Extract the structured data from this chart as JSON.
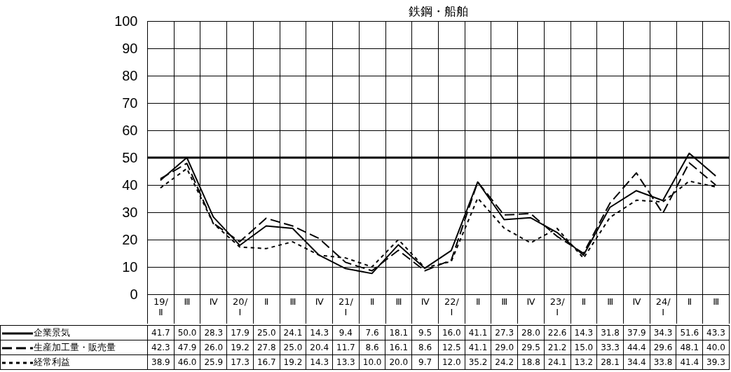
{
  "chart_data": {
    "type": "line",
    "title": "鉄鋼・船舶",
    "categories": [
      "19/\nⅡ",
      "Ⅲ",
      "Ⅳ",
      "20/\nⅠ",
      "Ⅱ",
      "Ⅲ",
      "Ⅳ",
      "21/\nⅠ",
      "Ⅱ",
      "Ⅲ",
      "Ⅳ",
      "22/\nⅠ",
      "Ⅱ",
      "Ⅲ",
      "Ⅳ",
      "23/\nⅠ",
      "Ⅱ",
      "Ⅲ",
      "Ⅳ",
      "24/\nⅠ",
      "Ⅱ",
      "Ⅲ"
    ],
    "series": [
      {
        "name": "企業景気",
        "color": "#000000",
        "line_style": "solid",
        "values": [
          41.7,
          50.0,
          28.3,
          17.9,
          25.0,
          24.1,
          14.3,
          9.4,
          7.6,
          18.1,
          9.5,
          16.0,
          41.1,
          27.3,
          28.0,
          22.6,
          14.3,
          31.8,
          37.9,
          34.3,
          51.6,
          43.3
        ],
        "value_labels": [
          "41.7",
          "50.0",
          "28.3",
          "17.9",
          "25.0",
          "24.1",
          "14.3",
          "9.4",
          "7.6",
          "18.1",
          "9.5",
          "16.0",
          "41.1",
          "27.3",
          "28.0",
          "22.6",
          "14.3",
          "31.8",
          "37.9",
          "34.3",
          "51.6",
          "43.3"
        ]
      },
      {
        "name": "生産加工量・販売量",
        "color": "#000000",
        "line_style": "dashed",
        "values": [
          42.3,
          47.9,
          26.0,
          19.2,
          27.8,
          25.0,
          20.4,
          11.7,
          8.6,
          16.1,
          8.6,
          12.5,
          41.1,
          29.0,
          29.5,
          21.2,
          15.0,
          33.3,
          44.4,
          29.6,
          48.1,
          40.0
        ],
        "value_labels": [
          "42.3",
          "47.9",
          "26.0",
          "19.2",
          "27.8",
          "25.0",
          "20.4",
          "11.7",
          "8.6",
          "16.1",
          "8.6",
          "12.5",
          "41.1",
          "29.0",
          "29.5",
          "21.2",
          "15.0",
          "33.3",
          "44.4",
          "29.6",
          "48.1",
          "40.0"
        ]
      },
      {
        "name": "経常利益",
        "color": "#000000",
        "line_style": "dotted",
        "values": [
          38.9,
          46.0,
          25.9,
          17.3,
          16.7,
          19.2,
          14.3,
          13.3,
          10.0,
          20.0,
          9.7,
          12.0,
          35.2,
          24.2,
          18.8,
          24.1,
          13.2,
          28.1,
          34.4,
          33.8,
          41.4,
          39.3
        ],
        "value_labels": [
          "38.9",
          "46.0",
          "25.9",
          "17.3",
          "16.7",
          "19.2",
          "14.3",
          "13.3",
          "10.0",
          "20.0",
          "9.7",
          "12.0",
          "35.2",
          "24.2",
          "18.8",
          "24.1",
          "13.2",
          "28.1",
          "34.4",
          "33.8",
          "41.4",
          "39.3"
        ]
      }
    ],
    "ylim": [
      0,
      100
    ],
    "yticks": [
      0,
      10,
      20,
      30,
      40,
      50,
      60,
      70,
      80,
      90,
      100
    ],
    "grid": true,
    "legend": "bottom",
    "ref_lines": [
      {
        "axis": "y",
        "value": 50,
        "color": "#000000"
      }
    ]
  }
}
